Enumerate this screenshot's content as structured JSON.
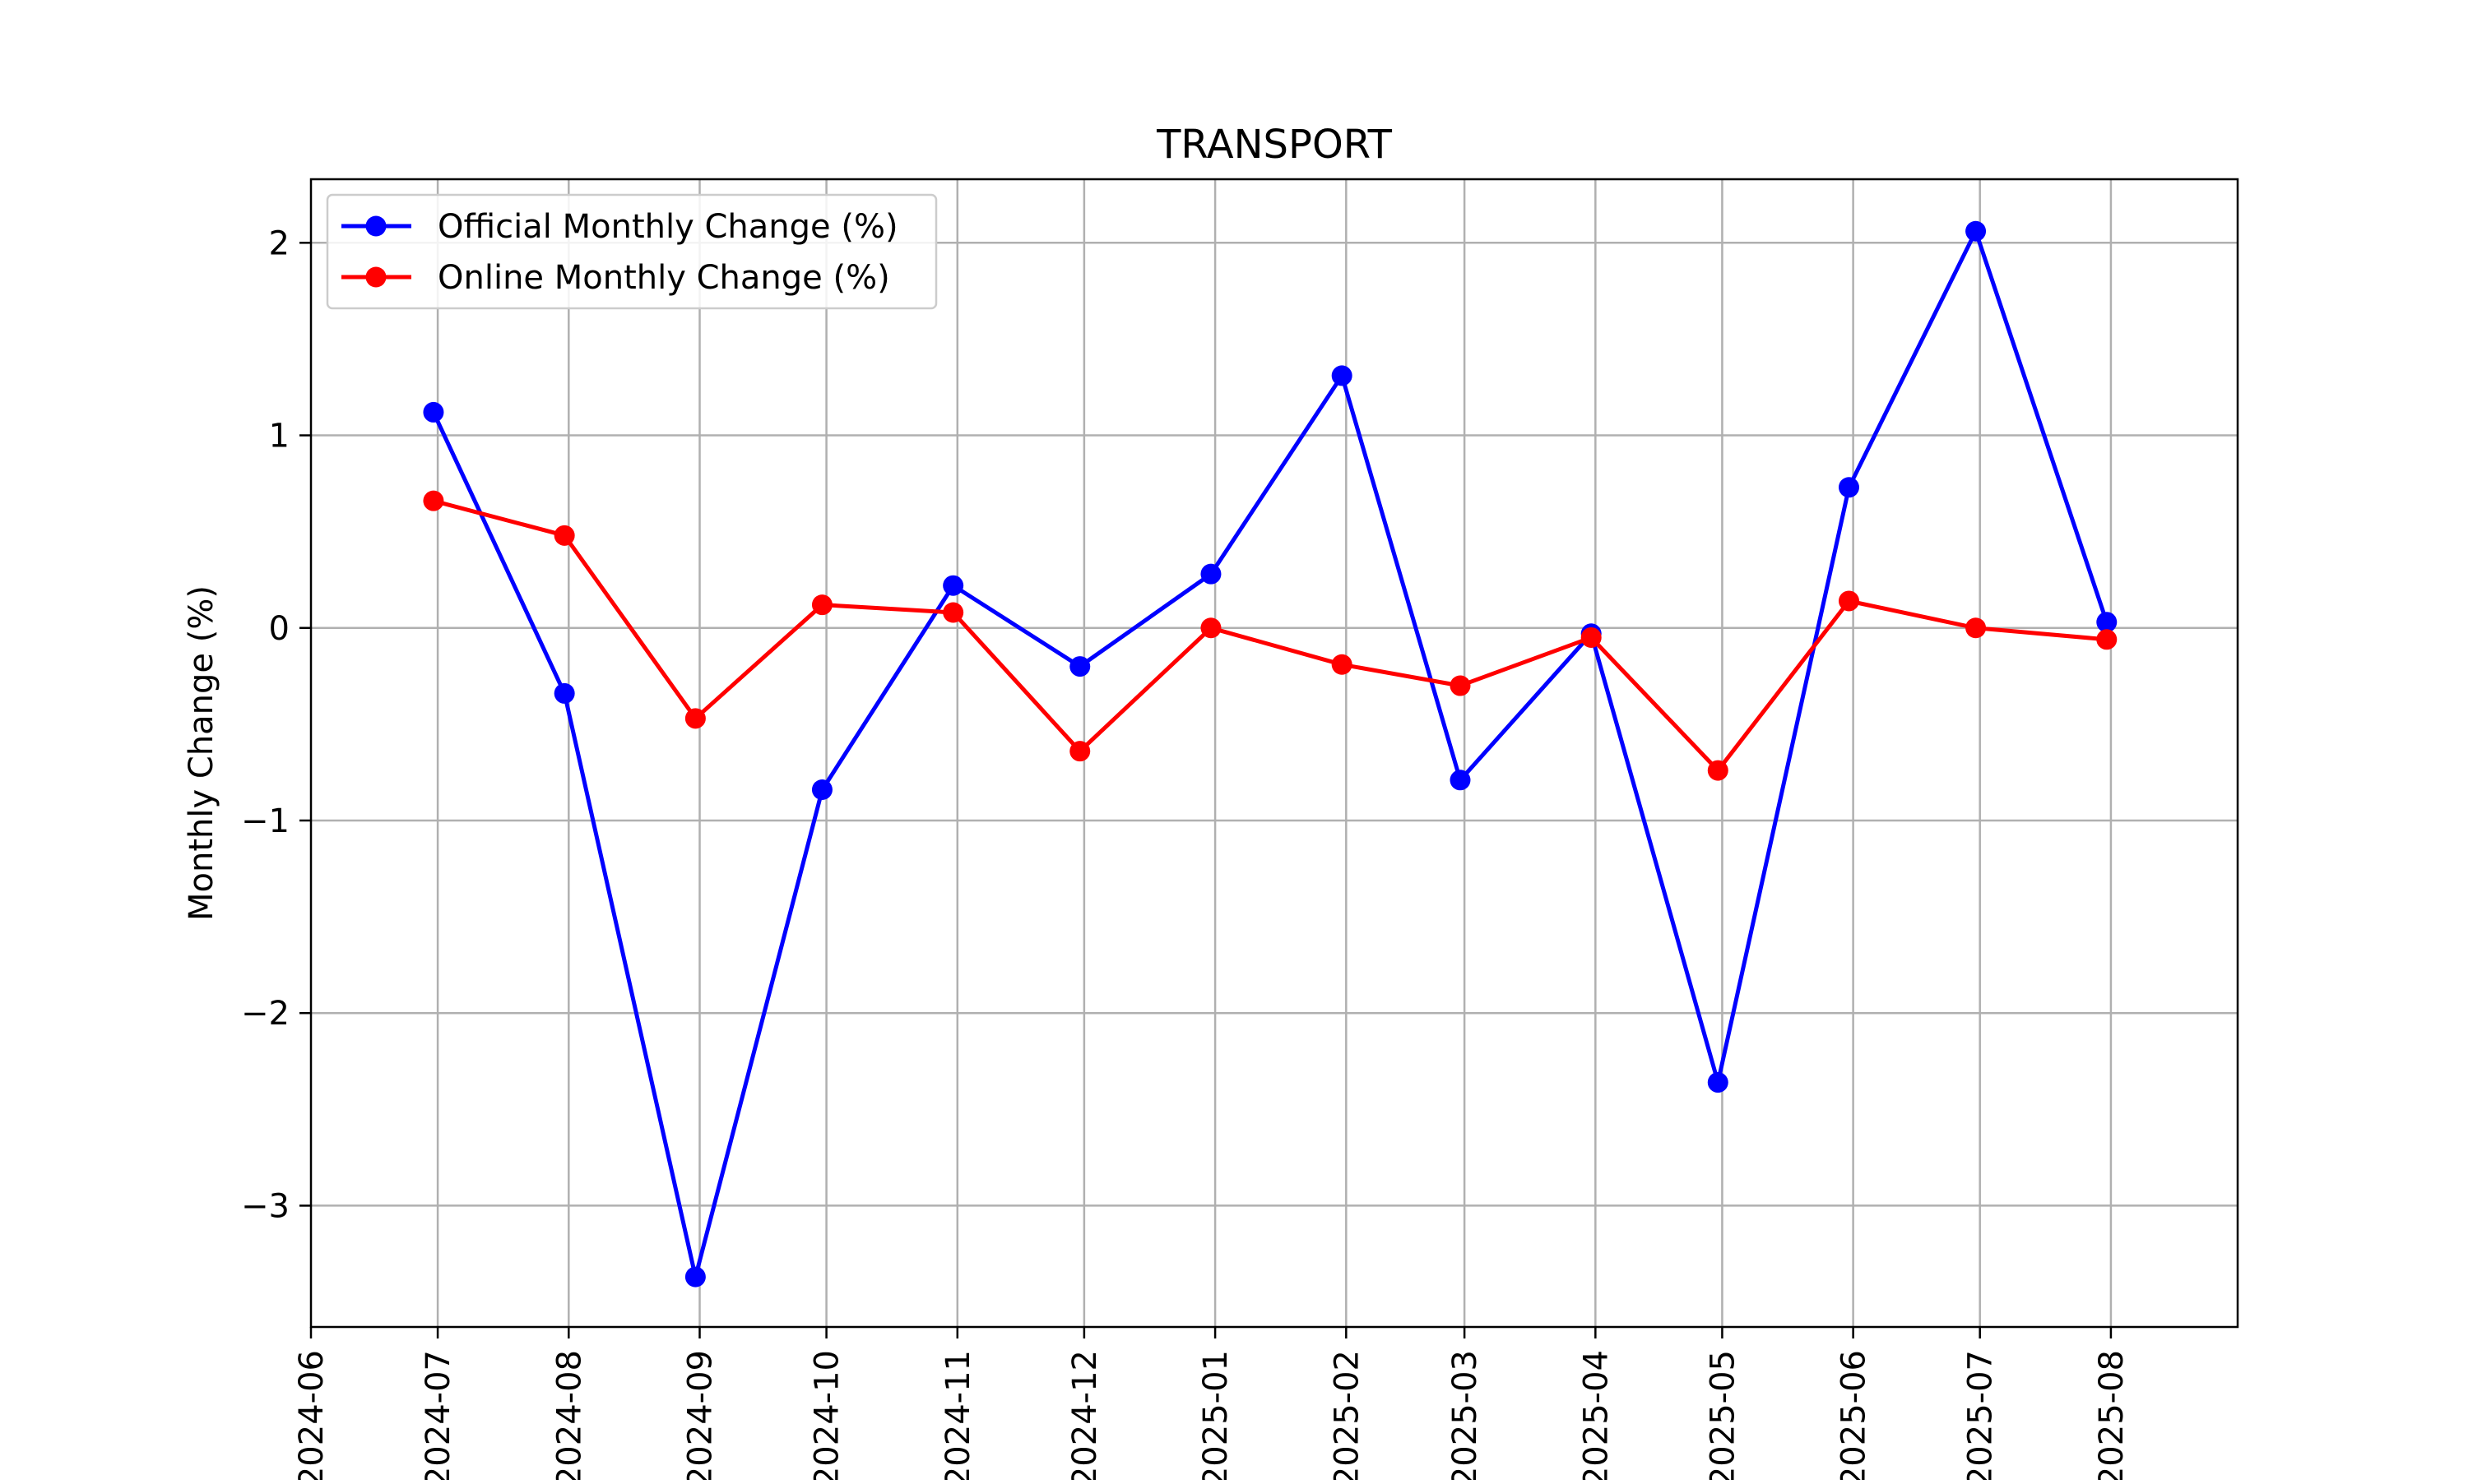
{
  "chart_data": {
    "type": "line",
    "title": "TRANSPORT",
    "xlabel": "",
    "ylabel": "Monthly Change (%)",
    "x_ticks": [
      "2024-06",
      "2024-07",
      "2024-08",
      "2024-09",
      "2024-10",
      "2024-11",
      "2024-12",
      "2025-01",
      "2025-02",
      "2025-03",
      "2025-04",
      "2025-05",
      "2025-06",
      "2025-07",
      "2025-08"
    ],
    "x_range": [
      "2024-06-01",
      "2025-08-31"
    ],
    "y_ticks": [
      -3,
      -2,
      -1,
      0,
      1,
      2
    ],
    "y_tick_labels": [
      "−3",
      "−2",
      "−1",
      "0",
      "1",
      "2"
    ],
    "ylim": [
      -3.63,
      2.33
    ],
    "grid": true,
    "legend_position": "top-left",
    "series": [
      {
        "name": "Official Monthly Change (%)",
        "color": "#0000ff",
        "marker": "circle",
        "x": [
          "2024-06-30",
          "2024-07-31",
          "2024-08-31",
          "2024-09-30",
          "2024-10-31",
          "2024-11-30",
          "2024-12-31",
          "2025-01-31",
          "2025-02-28",
          "2025-03-31",
          "2025-04-30",
          "2025-05-31",
          "2025-06-30",
          "2025-07-31"
        ],
        "values": [
          1.12,
          -0.34,
          -3.37,
          -0.84,
          0.22,
          -0.2,
          0.28,
          1.31,
          -0.79,
          -0.03,
          -2.36,
          0.73,
          2.06,
          0.03
        ]
      },
      {
        "name": "Online Monthly Change (%)",
        "color": "#ff0000",
        "marker": "circle",
        "x": [
          "2024-06-30",
          "2024-07-31",
          "2024-08-31",
          "2024-09-30",
          "2024-10-31",
          "2024-11-30",
          "2024-12-31",
          "2025-01-31",
          "2025-02-28",
          "2025-03-31",
          "2025-04-30",
          "2025-05-31",
          "2025-06-30",
          "2025-07-31"
        ],
        "values": [
          0.66,
          0.48,
          -0.47,
          0.12,
          0.08,
          -0.64,
          0.0,
          -0.19,
          -0.3,
          -0.05,
          -0.74,
          0.14,
          0.0,
          -0.06
        ]
      }
    ]
  }
}
